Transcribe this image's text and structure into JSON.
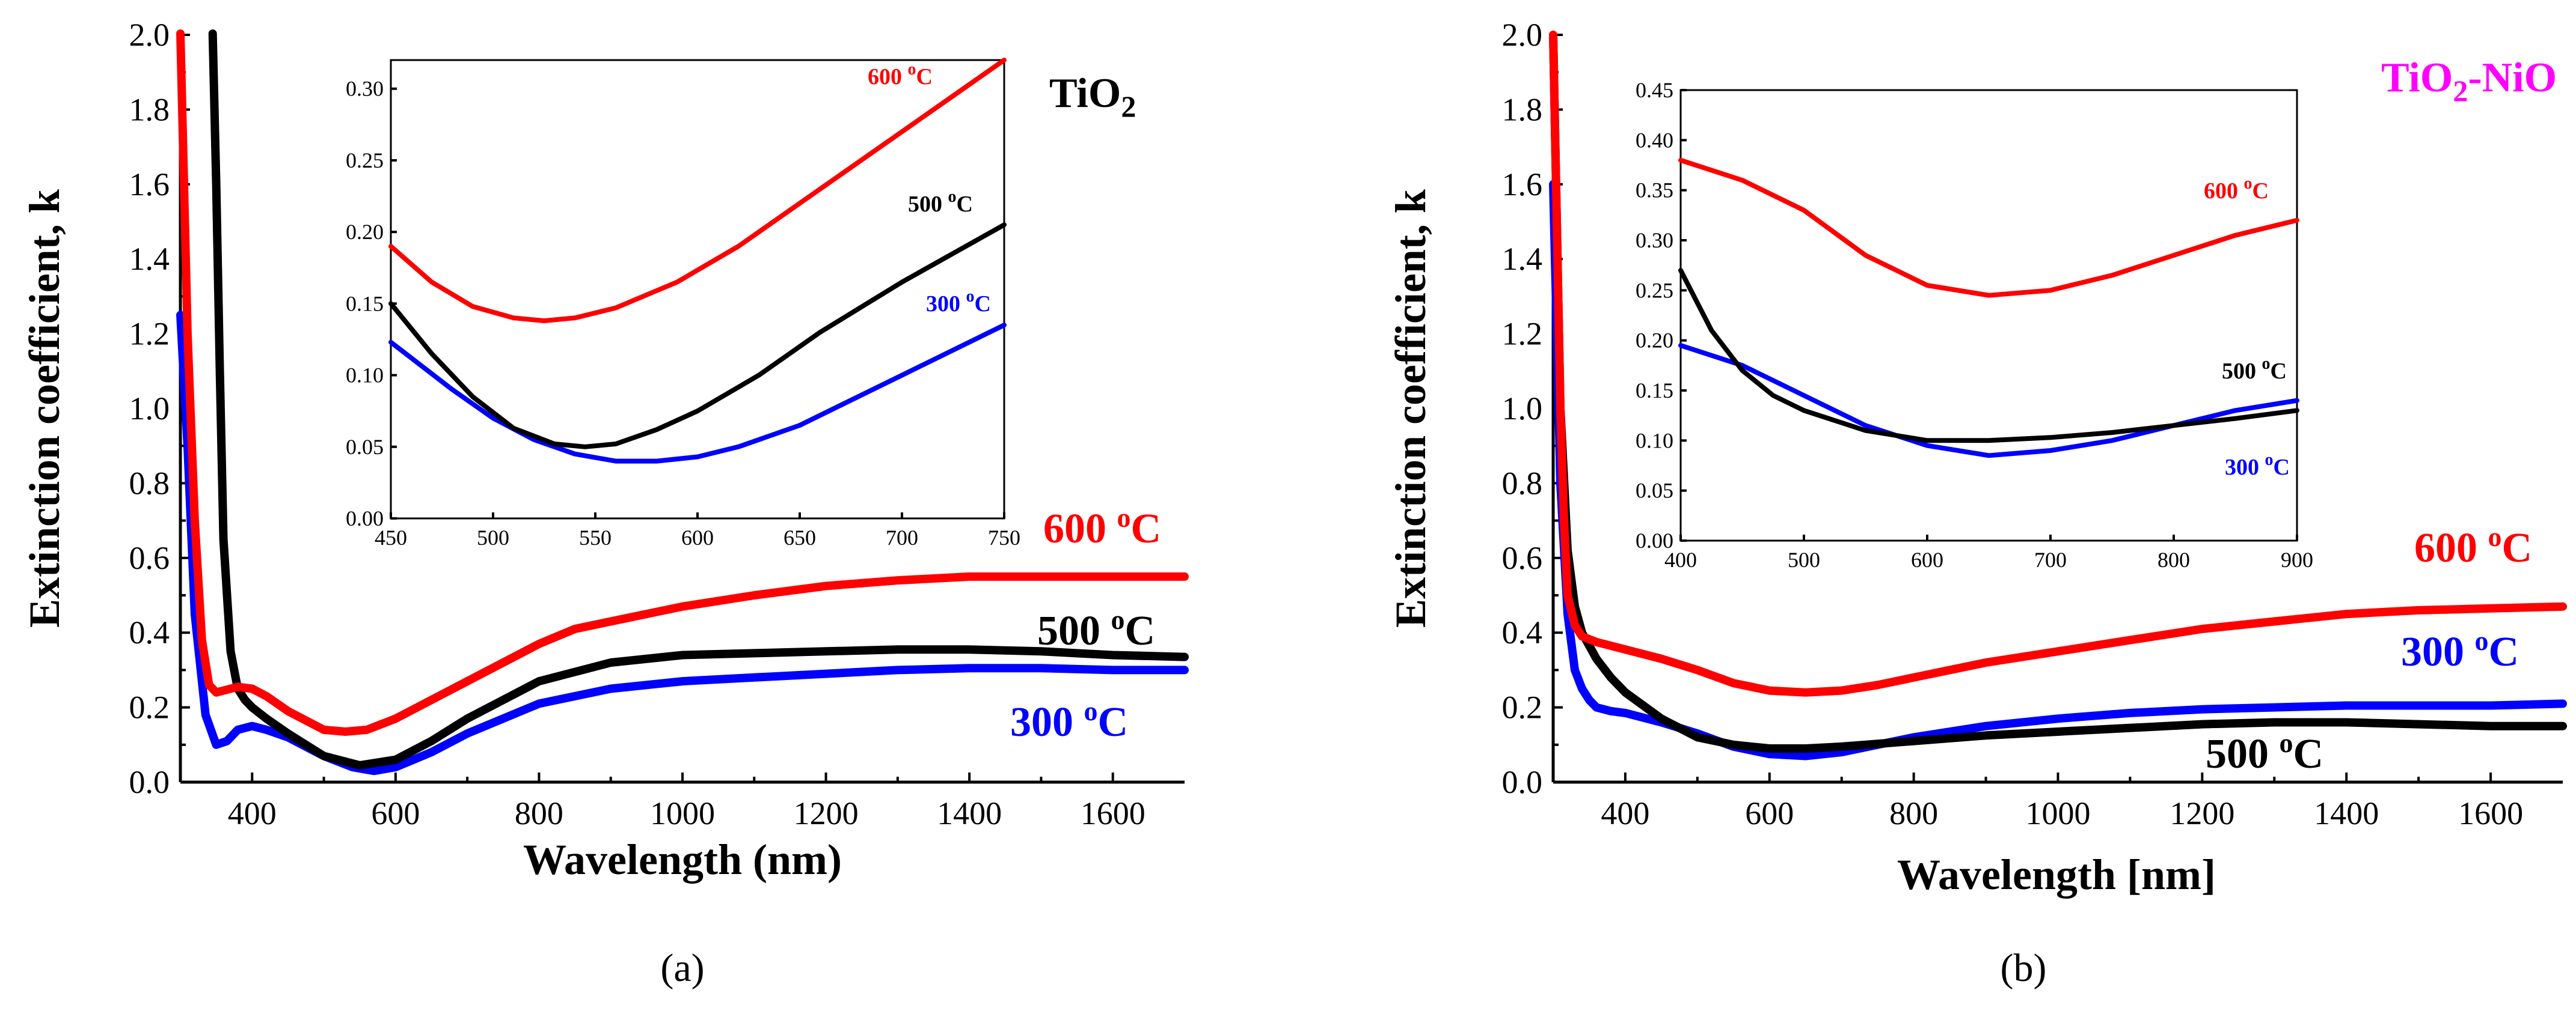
{
  "chart_data": [
    {
      "panel": "a",
      "caption_text": "(a)",
      "type": "line",
      "title": "TiO2",
      "title_main": "TiO",
      "title_sub": "2",
      "title_color": "#000000",
      "xlabel": "Wavelength (nm)",
      "ylabel": "Extinction coefficient, k",
      "xlim": [
        300,
        1700
      ],
      "ylim": [
        0.0,
        2.0
      ],
      "xticks": [
        400,
        600,
        800,
        1000,
        1200,
        1400,
        1600
      ],
      "yticks": [
        0.0,
        0.2,
        0.4,
        0.6,
        0.8,
        1.0,
        1.2,
        1.4,
        1.6,
        1.8,
        2.0
      ],
      "series": [
        {
          "name": "300 oC",
          "label_num": "300 ",
          "label_sup": "o",
          "label_unit": "C",
          "color": "#0000ff",
          "x": [
            300,
            310,
            320,
            335,
            350,
            365,
            380,
            400,
            420,
            450,
            500,
            540,
            570,
            600,
            650,
            700,
            800,
            900,
            1000,
            1100,
            1200,
            1300,
            1400,
            1500,
            1600,
            1700
          ],
          "y": [
            1.25,
            0.9,
            0.45,
            0.18,
            0.1,
            0.11,
            0.14,
            0.15,
            0.14,
            0.12,
            0.07,
            0.04,
            0.03,
            0.04,
            0.08,
            0.13,
            0.21,
            0.25,
            0.27,
            0.28,
            0.29,
            0.3,
            0.305,
            0.305,
            0.3,
            0.3
          ]
        },
        {
          "name": "500 oC",
          "label_num": "500 ",
          "label_sup": "o",
          "label_unit": "C",
          "color": "#000000",
          "x": [
            345,
            350,
            355,
            360,
            370,
            380,
            390,
            400,
            420,
            450,
            500,
            550,
            600,
            650,
            700,
            800,
            900,
            1000,
            1100,
            1200,
            1300,
            1400,
            1500,
            1600,
            1700
          ],
          "y": [
            2.05,
            1.6,
            1.1,
            0.65,
            0.35,
            0.25,
            0.22,
            0.2,
            0.17,
            0.13,
            0.07,
            0.045,
            0.06,
            0.11,
            0.17,
            0.27,
            0.32,
            0.34,
            0.345,
            0.35,
            0.355,
            0.355,
            0.35,
            0.34,
            0.335
          ]
        },
        {
          "name": "600 oC",
          "label_num": "600 ",
          "label_sup": "o",
          "label_unit": "C",
          "color": "#ff0000",
          "x": [
            300,
            305,
            310,
            320,
            330,
            340,
            350,
            360,
            370,
            380,
            400,
            420,
            450,
            500,
            530,
            560,
            600,
            650,
            700,
            750,
            800,
            850,
            900,
            1000,
            1100,
            1200,
            1300,
            1400,
            1500,
            1600,
            1700
          ],
          "y": [
            2.05,
            1.6,
            1.2,
            0.7,
            0.38,
            0.26,
            0.24,
            0.245,
            0.25,
            0.255,
            0.25,
            0.23,
            0.19,
            0.14,
            0.135,
            0.14,
            0.17,
            0.22,
            0.27,
            0.32,
            0.37,
            0.41,
            0.43,
            0.47,
            0.5,
            0.525,
            0.54,
            0.55,
            0.55,
            0.55,
            0.55
          ]
        }
      ],
      "inset": {
        "xlim": [
          450,
          750
        ],
        "ylim": [
          0.0,
          0.32
        ],
        "xticks": [
          450,
          500,
          550,
          600,
          650,
          700,
          750
        ],
        "yticks": [
          0.0,
          0.05,
          0.1,
          0.15,
          0.2,
          0.25,
          0.3
        ],
        "ytick_labels": [
          "0.00",
          "0.05",
          "0.10",
          "0.15",
          "0.20",
          "0.25",
          "0.30"
        ],
        "series": [
          {
            "name": "300 oC",
            "color": "#0000ff",
            "x": [
              450,
              480,
              500,
              520,
              540,
              560,
              580,
              600,
              620,
              650,
              700,
              750
            ],
            "y": [
              0.123,
              0.09,
              0.07,
              0.055,
              0.045,
              0.04,
              0.04,
              0.043,
              0.05,
              0.065,
              0.1,
              0.135
            ]
          },
          {
            "name": "500 oC",
            "color": "#000000",
            "x": [
              450,
              470,
              490,
              510,
              530,
              545,
              560,
              580,
              600,
              630,
              660,
              700,
              750
            ],
            "y": [
              0.15,
              0.115,
              0.085,
              0.063,
              0.052,
              0.05,
              0.052,
              0.062,
              0.075,
              0.1,
              0.13,
              0.165,
              0.205
            ]
          },
          {
            "name": "600 oC",
            "color": "#ff0000",
            "x": [
              450,
              470,
              490,
              510,
              525,
              540,
              560,
              590,
              620,
              650,
              680,
              710,
              730,
              750
            ],
            "y": [
              0.19,
              0.165,
              0.148,
              0.14,
              0.138,
              0.14,
              0.147,
              0.165,
              0.19,
              0.22,
              0.25,
              0.28,
              0.3,
              0.32
            ]
          }
        ],
        "labels": [
          {
            "series": "600 oC",
            "num": "600 ",
            "sup": "o",
            "unit": "C",
            "color": "#ff0000"
          },
          {
            "series": "500 oC",
            "num": "500 ",
            "sup": "o",
            "unit": "C",
            "color": "#000000"
          },
          {
            "series": "300 oC",
            "num": "300 ",
            "sup": "o",
            "unit": "C",
            "color": "#0000ff"
          }
        ]
      }
    },
    {
      "panel": "b",
      "caption_text": "(b)",
      "type": "line",
      "title": "TiO2-NiO",
      "title_main": "TiO",
      "title_sub": "2",
      "title_tail": "-NiO",
      "title_color": "#ff00ff",
      "xlabel": "Wavelength [nm]",
      "ylabel": "Extinction coefficient, k",
      "xlim": [
        300,
        1700
      ],
      "ylim": [
        0.0,
        2.0
      ],
      "xticks": [
        400,
        600,
        800,
        1000,
        1200,
        1400,
        1600
      ],
      "yticks": [
        0.0,
        0.2,
        0.4,
        0.6,
        0.8,
        1.0,
        1.2,
        1.4,
        1.6,
        1.8,
        2.0
      ],
      "series": [
        {
          "name": "300 oC",
          "label_num": "300 ",
          "label_sup": "o",
          "label_unit": "C",
          "color": "#0000ff",
          "x": [
            300,
            305,
            310,
            320,
            330,
            340,
            350,
            360,
            380,
            400,
            450,
            500,
            550,
            600,
            650,
            700,
            800,
            900,
            1000,
            1100,
            1200,
            1300,
            1400,
            1500,
            1600,
            1700
          ],
          "y": [
            1.6,
            1.2,
            0.8,
            0.45,
            0.3,
            0.25,
            0.22,
            0.2,
            0.19,
            0.185,
            0.16,
            0.13,
            0.095,
            0.075,
            0.07,
            0.08,
            0.12,
            0.15,
            0.17,
            0.185,
            0.195,
            0.2,
            0.205,
            0.205,
            0.205,
            0.21
          ]
        },
        {
          "name": "500 oC",
          "label_num": "500 ",
          "label_sup": "o",
          "label_unit": "C",
          "color": "#000000",
          "x": [
            300,
            305,
            310,
            320,
            330,
            340,
            360,
            380,
            400,
            450,
            500,
            550,
            600,
            650,
            700,
            800,
            900,
            1000,
            1100,
            1200,
            1300,
            1400,
            1500,
            1600,
            1700
          ],
          "y": [
            2.0,
            1.5,
            1.0,
            0.62,
            0.47,
            0.4,
            0.33,
            0.28,
            0.24,
            0.17,
            0.12,
            0.1,
            0.09,
            0.09,
            0.095,
            0.11,
            0.125,
            0.135,
            0.145,
            0.155,
            0.16,
            0.16,
            0.155,
            0.15,
            0.15
          ]
        },
        {
          "name": "600 oC",
          "label_num": "600 ",
          "label_sup": "o",
          "label_unit": "C",
          "color": "#ff0000",
          "x": [
            300,
            305,
            310,
            315,
            320,
            330,
            340,
            360,
            380,
            400,
            450,
            500,
            550,
            600,
            650,
            700,
            750,
            800,
            850,
            900,
            1000,
            1100,
            1200,
            1300,
            1400,
            1500,
            1600,
            1700
          ],
          "y": [
            2.0,
            1.5,
            1.0,
            0.7,
            0.5,
            0.42,
            0.39,
            0.375,
            0.365,
            0.355,
            0.33,
            0.3,
            0.265,
            0.245,
            0.24,
            0.245,
            0.26,
            0.28,
            0.3,
            0.32,
            0.35,
            0.38,
            0.41,
            0.43,
            0.45,
            0.46,
            0.465,
            0.47
          ]
        }
      ],
      "inset": {
        "xlim": [
          400,
          900
        ],
        "ylim": [
          0.0,
          0.45
        ],
        "xticks": [
          400,
          500,
          600,
          700,
          800,
          900
        ],
        "yticks": [
          0.0,
          0.05,
          0.1,
          0.15,
          0.2,
          0.25,
          0.3,
          0.35,
          0.4,
          0.45
        ],
        "ytick_labels": [
          "0.00",
          "0.05",
          "0.10",
          "0.15",
          "0.20",
          "0.25",
          "0.30",
          "0.35",
          "0.40",
          "0.45"
        ],
        "series": [
          {
            "name": "300 oC",
            "color": "#0000ff",
            "x": [
              400,
              450,
              500,
              550,
              600,
              650,
              700,
              750,
              800,
              850,
              900
            ],
            "y": [
              0.195,
              0.175,
              0.145,
              0.115,
              0.095,
              0.085,
              0.09,
              0.1,
              0.115,
              0.13,
              0.14
            ]
          },
          {
            "name": "500 oC",
            "color": "#000000",
            "x": [
              400,
              425,
              450,
              475,
              500,
              550,
              600,
              650,
              700,
              750,
              800,
              850,
              900
            ],
            "y": [
              0.27,
              0.21,
              0.17,
              0.145,
              0.13,
              0.11,
              0.1,
              0.1,
              0.103,
              0.108,
              0.115,
              0.122,
              0.13
            ]
          },
          {
            "name": "600 oC",
            "color": "#ff0000",
            "x": [
              400,
              450,
              500,
              550,
              600,
              650,
              700,
              750,
              800,
              850,
              900
            ],
            "y": [
              0.38,
              0.36,
              0.33,
              0.285,
              0.255,
              0.245,
              0.25,
              0.265,
              0.285,
              0.305,
              0.32
            ]
          }
        ],
        "labels": [
          {
            "series": "600 oC",
            "num": "600 ",
            "sup": "o",
            "unit": "C",
            "color": "#ff0000"
          },
          {
            "series": "500 oC",
            "num": "500 ",
            "sup": "o",
            "unit": "C",
            "color": "#000000"
          },
          {
            "series": "300 oC",
            "num": "300 ",
            "sup": "o",
            "unit": "C",
            "color": "#0000ff"
          }
        ]
      }
    }
  ]
}
